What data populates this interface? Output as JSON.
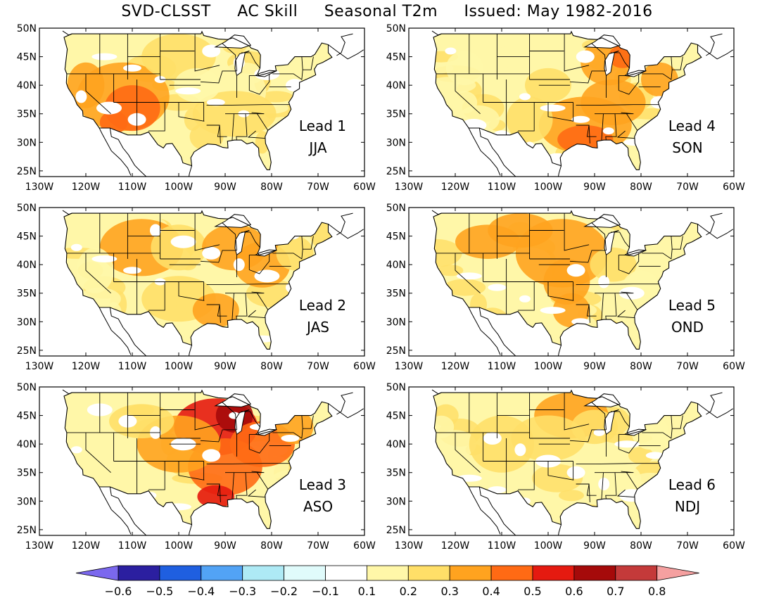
{
  "title": "SVD-CLSST     AC Skill     Seasonal T2m     Issued: May 1982-2016",
  "lat_ticks": [
    "50N",
    "45N",
    "40N",
    "35N",
    "30N",
    "25N"
  ],
  "lon_ticks": [
    "130W",
    "120W",
    "110W",
    "100W",
    "90W",
    "80W",
    "70W",
    "60W"
  ],
  "lat_values": [
    50,
    45,
    40,
    35,
    30,
    25
  ],
  "lon_values": [
    -130,
    -120,
    -110,
    -100,
    -90,
    -80,
    -70,
    -60
  ],
  "extent": {
    "lon": [
      -130,
      -60
    ],
    "lat": [
      24,
      50
    ]
  },
  "panels": [
    {
      "lead": "Lead 1",
      "season": "JJA",
      "hotspot": "southwest"
    },
    {
      "lead": "Lead 4",
      "season": "SON",
      "hotspot": "south-central and east"
    },
    {
      "lead": "Lead 2",
      "season": "JAS",
      "hotspot": "north-central and northeast"
    },
    {
      "lead": "Lead 5",
      "season": "OND",
      "hotspot": "central plains"
    },
    {
      "lead": "Lead 3",
      "season": "ASO",
      "hotspot": "upper midwest"
    },
    {
      "lead": "Lead 6",
      "season": "NDJ",
      "hotspot": "northern plains"
    }
  ],
  "colorbar": {
    "labels": [
      "-0.6",
      "-0.5",
      "-0.4",
      "-0.3",
      "-0.2",
      "-0.1",
      "0.1",
      "0.2",
      "0.3",
      "0.4",
      "0.5",
      "0.6",
      "0.7",
      "0.8"
    ],
    "colors": [
      "#7b68ee",
      "#2b1fa0",
      "#1f5fe0",
      "#52a3f5",
      "#aeeaf5",
      "#e0fbfb",
      "#ffffff",
      "#fff7a8",
      "#ffdf68",
      "#ffa31f",
      "#ff6a14",
      "#e51a10",
      "#a50a0a",
      "#c43a3a",
      "#f5a0a0"
    ]
  }
}
